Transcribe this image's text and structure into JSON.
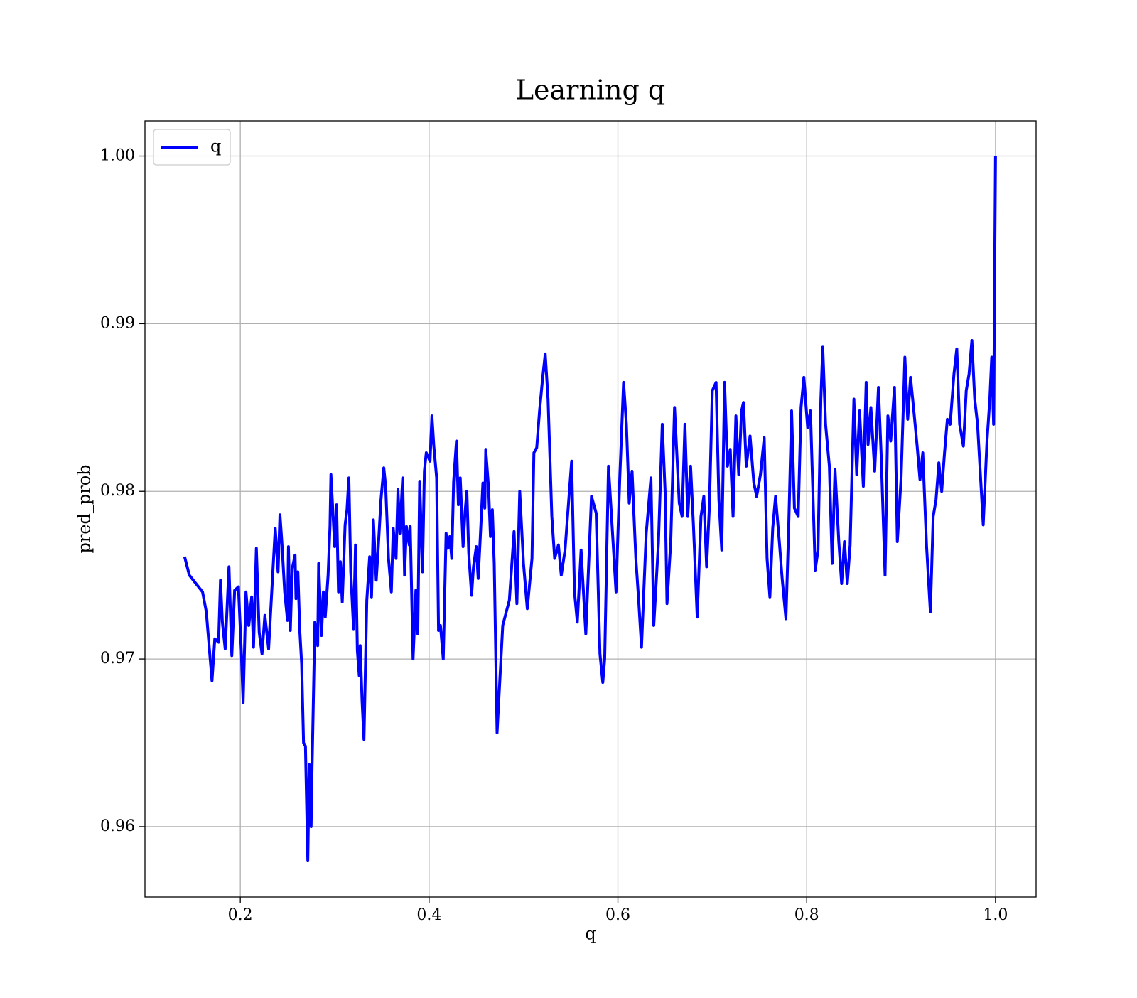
{
  "chart_data": {
    "type": "line",
    "title": "Learning q",
    "xlabel": "q",
    "ylabel": "pred_prob",
    "x": [
      0.141,
      0.146,
      0.153,
      0.16,
      0.164,
      0.17,
      0.173,
      0.177,
      0.179,
      0.181,
      0.184,
      0.188,
      0.191,
      0.194,
      0.198,
      0.201,
      0.203,
      0.206,
      0.209,
      0.212,
      0.214,
      0.217,
      0.22,
      0.223,
      0.226,
      0.23,
      0.233,
      0.237,
      0.24,
      0.242,
      0.244,
      0.247,
      0.25,
      0.251,
      0.253,
      0.255,
      0.258,
      0.259,
      0.261,
      0.263,
      0.265,
      0.267,
      0.269,
      0.2715,
      0.273,
      0.275,
      0.276,
      0.279,
      0.282,
      0.283,
      0.286,
      0.288,
      0.29,
      0.293,
      0.295,
      0.296,
      0.3,
      0.302,
      0.304,
      0.306,
      0.308,
      0.311,
      0.313,
      0.315,
      0.317,
      0.32,
      0.322,
      0.324,
      0.326,
      0.327,
      0.329,
      0.331,
      0.334,
      0.337,
      0.339,
      0.341,
      0.344,
      0.346,
      0.349,
      0.352,
      0.354,
      0.357,
      0.36,
      0.362,
      0.365,
      0.367,
      0.369,
      0.372,
      0.374,
      0.376,
      0.379,
      0.38,
      0.383,
      0.386,
      0.388,
      0.39,
      0.393,
      0.395,
      0.397,
      0.401,
      0.403,
      0.405,
      0.408,
      0.41,
      0.412,
      0.415,
      0.418,
      0.42,
      0.422,
      0.424,
      0.426,
      0.429,
      0.431,
      0.433,
      0.436,
      0.438,
      0.44,
      0.442,
      0.445,
      0.447,
      0.45,
      0.452,
      0.454,
      0.457,
      0.459,
      0.46,
      0.463,
      0.465,
      0.467,
      0.469,
      0.472,
      0.478,
      0.485,
      0.49,
      0.493,
      0.496,
      0.5,
      0.504,
      0.509,
      0.511,
      0.514,
      0.517,
      0.52,
      0.523,
      0.526,
      0.53,
      0.533,
      0.537,
      0.54,
      0.544,
      0.551,
      0.554,
      0.557,
      0.561,
      0.566,
      0.572,
      0.577,
      0.581,
      0.584,
      0.586,
      0.59,
      0.594,
      0.598,
      0.602,
      0.606,
      0.609,
      0.612,
      0.615,
      0.619,
      0.622,
      0.625,
      0.63,
      0.635,
      0.638,
      0.643,
      0.647,
      0.65,
      0.652,
      0.656,
      0.66,
      0.665,
      0.668,
      0.671,
      0.674,
      0.677,
      0.68,
      0.684,
      0.688,
      0.691,
      0.694,
      0.697,
      0.7,
      0.704,
      0.707,
      0.71,
      0.713,
      0.716,
      0.719,
      0.722,
      0.725,
      0.728,
      0.731,
      0.733,
      0.736,
      0.74,
      0.744,
      0.747,
      0.751,
      0.755,
      0.758,
      0.761,
      0.764,
      0.767,
      0.771,
      0.774,
      0.778,
      0.781,
      0.784,
      0.787,
      0.791,
      0.794,
      0.797,
      0.801,
      0.804,
      0.809,
      0.812,
      0.815,
      0.817,
      0.82,
      0.824,
      0.827,
      0.83,
      0.834,
      0.837,
      0.84,
      0.843,
      0.846,
      0.85,
      0.853,
      0.856,
      0.86,
      0.863,
      0.865,
      0.868,
      0.872,
      0.876,
      0.879,
      0.883,
      0.886,
      0.889,
      0.893,
      0.896,
      0.9,
      0.904,
      0.907,
      0.91,
      0.914,
      0.917,
      0.92,
      0.923,
      0.927,
      0.931,
      0.934,
      0.937,
      0.94,
      0.943,
      0.946,
      0.949,
      0.952,
      0.956,
      0.959,
      0.962,
      0.966,
      0.969,
      0.972,
      0.975,
      0.978,
      0.981,
      0.984,
      0.987,
      0.991,
      0.994,
      0.996,
      0.998,
      1.0
    ],
    "series": [
      {
        "name": "q",
        "color": "#0000ff",
        "values": [
          0.9761,
          0.975,
          0.9745,
          0.974,
          0.9728,
          0.9687,
          0.9712,
          0.971,
          0.9747,
          0.9722,
          0.9706,
          0.9755,
          0.9702,
          0.9741,
          0.9743,
          0.9705,
          0.9674,
          0.974,
          0.972,
          0.9737,
          0.9707,
          0.9766,
          0.9716,
          0.9703,
          0.9726,
          0.9706,
          0.9737,
          0.9778,
          0.9752,
          0.9786,
          0.977,
          0.974,
          0.9723,
          0.9767,
          0.9717,
          0.9754,
          0.9762,
          0.9736,
          0.9752,
          0.9717,
          0.9697,
          0.965,
          0.9648,
          0.958,
          0.9637,
          0.96,
          0.9635,
          0.9722,
          0.9708,
          0.9757,
          0.9714,
          0.974,
          0.9725,
          0.975,
          0.9779,
          0.981,
          0.9767,
          0.9792,
          0.974,
          0.9758,
          0.9734,
          0.978,
          0.9789,
          0.9808,
          0.9752,
          0.9718,
          0.9768,
          0.9705,
          0.969,
          0.9708,
          0.9675,
          0.9652,
          0.9735,
          0.9761,
          0.9737,
          0.9783,
          0.9747,
          0.9765,
          0.9795,
          0.9814,
          0.9803,
          0.976,
          0.974,
          0.9778,
          0.976,
          0.9801,
          0.9775,
          0.9808,
          0.975,
          0.9779,
          0.9768,
          0.9779,
          0.97,
          0.9741,
          0.9715,
          0.9806,
          0.9752,
          0.9812,
          0.9823,
          0.9818,
          0.9845,
          0.9827,
          0.9808,
          0.9717,
          0.972,
          0.97,
          0.9775,
          0.9766,
          0.9773,
          0.976,
          0.9806,
          0.983,
          0.9792,
          0.9808,
          0.9767,
          0.9787,
          0.98,
          0.9763,
          0.9738,
          0.9755,
          0.9767,
          0.9748,
          0.977,
          0.9805,
          0.979,
          0.9825,
          0.9802,
          0.9773,
          0.9789,
          0.9757,
          0.9656,
          0.972,
          0.9735,
          0.9776,
          0.9733,
          0.98,
          0.9757,
          0.973,
          0.976,
          0.9823,
          0.9826,
          0.9848,
          0.9866,
          0.9882,
          0.9855,
          0.9785,
          0.976,
          0.9768,
          0.975,
          0.9765,
          0.9818,
          0.974,
          0.9722,
          0.9765,
          0.9715,
          0.9797,
          0.9787,
          0.9703,
          0.9686,
          0.97,
          0.9815,
          0.9778,
          0.974,
          0.9808,
          0.9865,
          0.984,
          0.9793,
          0.9812,
          0.976,
          0.9735,
          0.9707,
          0.9775,
          0.9808,
          0.972,
          0.977,
          0.984,
          0.98,
          0.9733,
          0.977,
          0.985,
          0.9793,
          0.9785,
          0.984,
          0.9785,
          0.9815,
          0.978,
          0.9725,
          0.9785,
          0.9797,
          0.9755,
          0.9792,
          0.986,
          0.9865,
          0.9795,
          0.9765,
          0.9865,
          0.9815,
          0.9825,
          0.9785,
          0.9845,
          0.981,
          0.9848,
          0.9853,
          0.9815,
          0.9833,
          0.9805,
          0.9797,
          0.981,
          0.9832,
          0.976,
          0.9737,
          0.9778,
          0.9797,
          0.977,
          0.9748,
          0.9724,
          0.978,
          0.9848,
          0.979,
          0.9785,
          0.985,
          0.9868,
          0.9838,
          0.9848,
          0.9753,
          0.9765,
          0.9855,
          0.9886,
          0.984,
          0.9815,
          0.9757,
          0.9813,
          0.977,
          0.9745,
          0.977,
          0.9745,
          0.9768,
          0.9855,
          0.981,
          0.9848,
          0.9803,
          0.9865,
          0.9828,
          0.985,
          0.9812,
          0.9862,
          0.982,
          0.975,
          0.9845,
          0.983,
          0.9862,
          0.977,
          0.9808,
          0.988,
          0.9843,
          0.9868,
          0.9845,
          0.9827,
          0.9807,
          0.9823,
          0.9767,
          0.9728,
          0.9785,
          0.9795,
          0.9817,
          0.98,
          0.9823,
          0.9843,
          0.984,
          0.987,
          0.9885,
          0.984,
          0.9827,
          0.986,
          0.987,
          0.989,
          0.9855,
          0.984,
          0.981,
          0.978,
          0.983,
          0.9855,
          0.988,
          0.984,
          1.0
        ]
      }
    ],
    "xlim": [
      0.099,
      1.043
    ],
    "ylim": [
      0.9558,
      1.0021
    ],
    "xticks": [
      0.2,
      0.4,
      0.6,
      0.8,
      {
        "value": 1.0,
        "label": "1.0"
      }
    ],
    "yticks": [
      0.96,
      0.97,
      0.98,
      0.99,
      {
        "value": 1.0,
        "label": "1.00"
      }
    ],
    "grid": true,
    "legend": "upper left"
  }
}
